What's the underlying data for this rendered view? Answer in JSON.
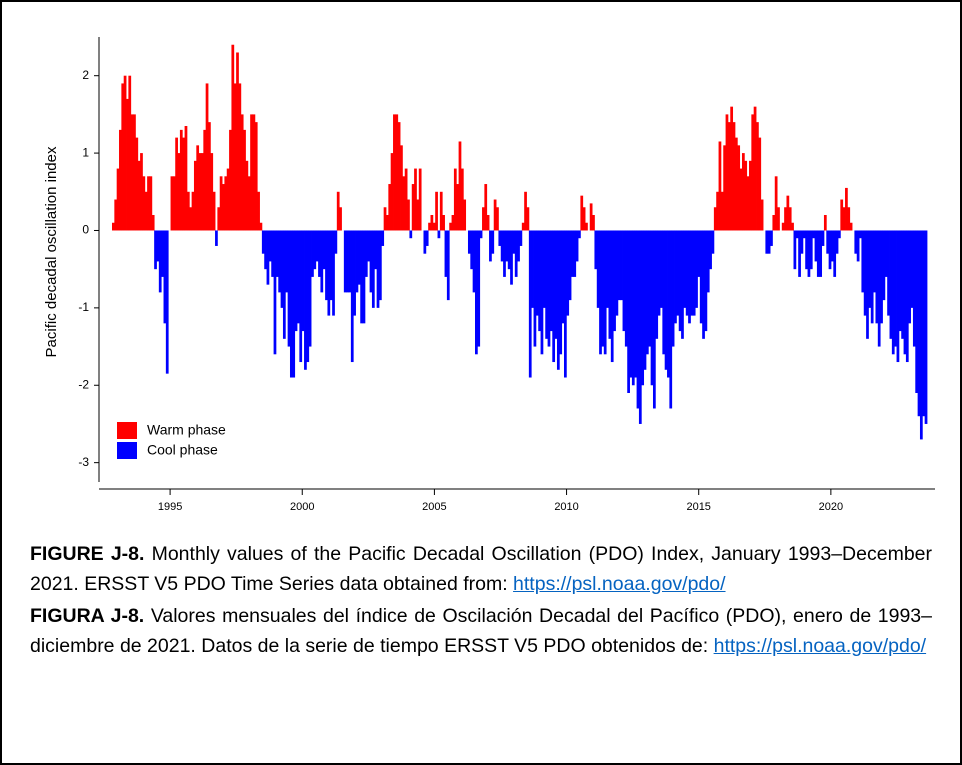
{
  "chart_data": {
    "type": "area",
    "y_label": "Pacific decadal oscillation index",
    "legend": [
      {
        "name": "Warm phase",
        "color": "#ff0000"
      },
      {
        "name": "Cool phase",
        "color": "#0000ff"
      }
    ],
    "legend_position": "lower-left",
    "xlim": [
      1992.31,
      2023.94
    ],
    "xticks": [
      1995,
      2000,
      2005,
      2010,
      2015,
      2020
    ],
    "ylim": [
      -3.25,
      2.5
    ],
    "yticks": [
      -3,
      -2,
      -1,
      0,
      1,
      2
    ],
    "values": [
      0.1,
      0.4,
      0.8,
      1.3,
      1.9,
      2.0,
      1.7,
      2.0,
      1.5,
      1.5,
      1.2,
      0.9,
      1.0,
      0.7,
      0.5,
      0.7,
      0.7,
      0.2,
      -0.5,
      -0.4,
      -0.8,
      -0.6,
      -1.2,
      -1.85,
      0.0,
      0.7,
      0.7,
      1.2,
      1.0,
      1.3,
      1.2,
      1.35,
      0.5,
      0.3,
      0.5,
      0.9,
      1.1,
      1.0,
      1.0,
      1.3,
      1.9,
      1.4,
      1.0,
      0.5,
      -0.2,
      0.3,
      0.7,
      0.6,
      0.7,
      0.8,
      1.3,
      2.4,
      1.9,
      2.3,
      1.9,
      1.5,
      1.3,
      0.9,
      0.7,
      1.5,
      1.5,
      1.4,
      0.5,
      0.1,
      -0.3,
      -0.5,
      -0.7,
      -0.4,
      -0.6,
      -1.6,
      -0.6,
      -0.8,
      -1.0,
      -1.4,
      -0.8,
      -1.5,
      -1.9,
      -1.9,
      -1.3,
      -1.2,
      -1.7,
      -1.3,
      -1.8,
      -1.7,
      -1.5,
      -0.6,
      -0.5,
      -0.4,
      -0.6,
      -0.8,
      -0.5,
      -0.9,
      -1.1,
      -0.9,
      -1.1,
      -0.3,
      0.5,
      0.3,
      0.0,
      -0.8,
      -0.8,
      -0.8,
      -1.7,
      -1.1,
      -0.8,
      -0.7,
      -1.2,
      -1.2,
      -0.6,
      -0.4,
      -0.8,
      -1.0,
      -0.5,
      -1.0,
      -0.9,
      -0.2,
      0.3,
      0.2,
      0.6,
      1.0,
      1.5,
      1.5,
      1.4,
      1.1,
      0.7,
      0.8,
      0.4,
      -0.1,
      0.6,
      0.8,
      0.4,
      0.8,
      0.0,
      -0.3,
      -0.2,
      0.1,
      0.2,
      0.1,
      0.5,
      -0.1,
      0.5,
      0.2,
      -0.6,
      -0.9,
      0.1,
      0.2,
      0.8,
      0.6,
      1.15,
      0.8,
      0.4,
      0.0,
      -0.3,
      -0.5,
      -0.8,
      -1.6,
      -1.5,
      -0.1,
      0.3,
      0.6,
      0.2,
      -0.4,
      -0.3,
      0.4,
      0.3,
      -0.2,
      -0.4,
      -0.6,
      -0.4,
      -0.5,
      -0.7,
      -0.3,
      -0.6,
      -0.4,
      -0.2,
      0.1,
      0.5,
      0.3,
      -1.9,
      -1.0,
      -1.5,
      -1.1,
      -1.3,
      -1.6,
      -1.0,
      -1.4,
      -1.5,
      -1.3,
      -1.7,
      -1.4,
      -1.8,
      -1.6,
      -1.2,
      -1.9,
      -1.1,
      -0.9,
      -0.6,
      -0.6,
      -0.4,
      -0.1,
      0.45,
      0.3,
      0.1,
      0.0,
      0.35,
      0.2,
      -0.5,
      -1.0,
      -1.6,
      -1.5,
      -1.6,
      -1.0,
      -1.4,
      -1.7,
      -1.3,
      -1.1,
      -0.9,
      -0.9,
      -1.3,
      -1.5,
      -2.1,
      -1.9,
      -2.0,
      -1.9,
      -2.3,
      -2.5,
      -2.0,
      -1.8,
      -1.6,
      -1.5,
      -2.0,
      -2.3,
      -1.4,
      -1.1,
      -1.0,
      -1.6,
      -1.8,
      -1.9,
      -2.3,
      -1.5,
      -1.2,
      -1.1,
      -1.3,
      -1.4,
      -1.0,
      -1.1,
      -1.2,
      -1.1,
      -1.1,
      -1.0,
      -0.6,
      -1.2,
      -1.4,
      -1.3,
      -0.8,
      -0.5,
      -0.3,
      0.3,
      0.5,
      1.15,
      0.5,
      1.1,
      1.5,
      1.4,
      1.6,
      1.4,
      1.2,
      1.1,
      0.8,
      1.0,
      0.9,
      0.7,
      0.9,
      1.5,
      1.6,
      1.4,
      1.2,
      0.4,
      0.0,
      -0.3,
      -0.3,
      -0.2,
      0.2,
      0.7,
      0.3,
      0.0,
      0.1,
      0.3,
      0.45,
      0.3,
      0.1,
      -0.5,
      -0.1,
      -0.6,
      -0.3,
      -0.1,
      -0.5,
      -0.6,
      -0.5,
      -0.1,
      -0.4,
      -0.6,
      -0.6,
      -0.2,
      0.2,
      -0.3,
      -0.5,
      -0.4,
      -0.6,
      -0.3,
      -0.1,
      0.4,
      0.3,
      0.55,
      0.3,
      0.1,
      0.0,
      -0.3,
      -0.4,
      -0.1,
      -0.8,
      -1.1,
      -1.4,
      -1.0,
      -1.2,
      -0.8,
      -1.2,
      -1.5,
      -1.2,
      -0.9,
      -0.6,
      -1.1,
      -1.4,
      -1.6,
      -1.5,
      -1.7,
      -1.3,
      -1.4,
      -1.6,
      -1.7,
      -1.2,
      -1.0,
      -1.5,
      -2.1,
      -2.4,
      -2.7,
      -2.4,
      -2.5
    ]
  },
  "caption": {
    "en_label": "FIGURE J-8.",
    "en_text": " Monthly values of the Pacific Decadal Oscillation (PDO) Index, January 1993–December 2021. ERSST V5 PDO Time Series data obtained from: ",
    "en_link": "https://psl.noaa.gov/pdo/",
    "es_label": "FIGURA J-8.",
    "es_text": " Valores mensuales del índice de Oscilación Decadal del Pacífico (PDO), enero de 1993–diciembre de 2021. Datos de la serie de tiempo ERSST V5 PDO obtenidos de: ",
    "es_link": "https://psl.noaa.gov/pdo/"
  }
}
